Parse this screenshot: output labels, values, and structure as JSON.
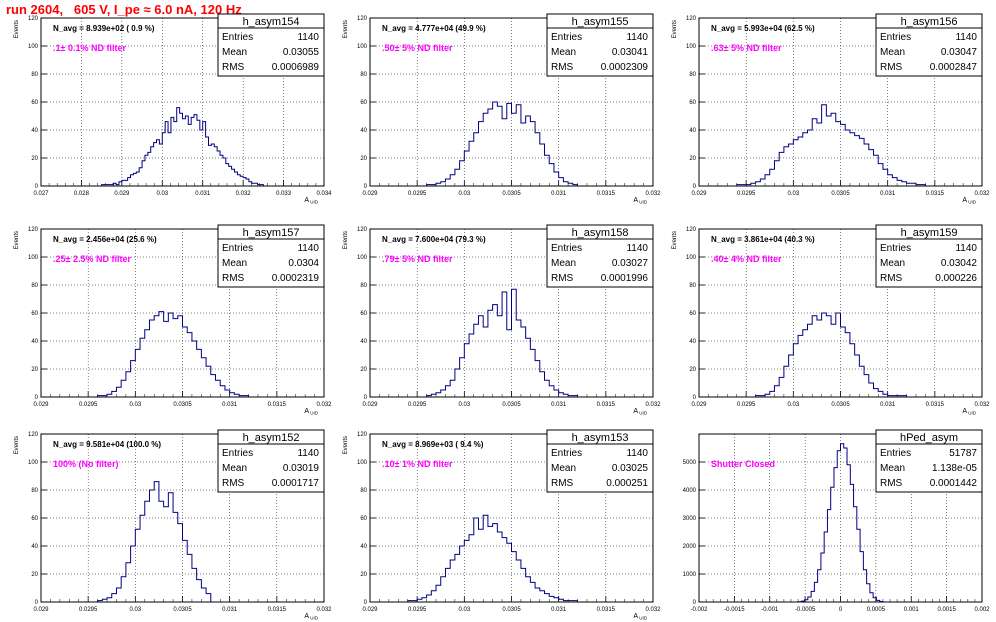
{
  "page": {
    "title": "run 2604,   605 V, I_pe ≈ 6.0 nA, 120 Hz"
  },
  "colors": {
    "hist_line": "#000080",
    "filter_label": "#ff00ff",
    "title": "#ff0000",
    "axis": "#000000",
    "grid": "#000000"
  },
  "chart_data": [
    {
      "type": "histogram",
      "name": "h_asym154",
      "stats": {
        "entries_label": "Entries",
        "entries": "1140",
        "mean_label": "Mean",
        "mean": "0.03055",
        "rms_label": "RMS",
        "rms": "0.0006989"
      },
      "navg": "N_avg = 8.939e+02 ( 0.9 %)",
      "filter": ".1± 0.1% ND filter",
      "ylabel": "Events",
      "xlabel": "A_UID",
      "xlim": [
        0.027,
        0.034
      ],
      "ylim": [
        0,
        120
      ],
      "xticks": [
        0.027,
        0.028,
        0.029,
        0.03,
        0.031,
        0.032,
        0.033,
        0.034
      ],
      "xtick_labels": [
        "0.027",
        "0.028",
        "0.029",
        "0.03",
        "0.031",
        "0.032",
        "0.033",
        "0.034"
      ],
      "yticks": [
        0,
        20,
        40,
        60,
        80,
        100,
        120
      ],
      "ytick_labels": [
        "0",
        "20",
        "40",
        "60",
        "80",
        "100",
        "120"
      ],
      "bin_edges": [
        0.0285,
        0.0325
      ],
      "counts": [
        1,
        1,
        1,
        1,
        2,
        1,
        3,
        4,
        4,
        6,
        8,
        9,
        10,
        13,
        18,
        22,
        24,
        28,
        31,
        33,
        30,
        38,
        46,
        38,
        49,
        46,
        56,
        52,
        48,
        50,
        44,
        49,
        51,
        47,
        40,
        46,
        35,
        29,
        30,
        28,
        25,
        22,
        20,
        16,
        14,
        12,
        10,
        8,
        7,
        6,
        5,
        3,
        2,
        2,
        1,
        1
      ]
    },
    {
      "type": "histogram",
      "name": "h_asym155",
      "stats": {
        "entries_label": "Entries",
        "entries": "1140",
        "mean_label": "Mean",
        "mean": "0.03041",
        "rms_label": "RMS",
        "rms": "0.0002309"
      },
      "navg": "N_avg = 4.777e+04 (49.9 %)",
      "filter": ".50± 5% ND filter",
      "ylabel": "Events",
      "xlabel": "A_UID",
      "xlim": [
        0.029,
        0.032
      ],
      "ylim": [
        0,
        120
      ],
      "xticks": [
        0.029,
        0.0295,
        0.03,
        0.0305,
        0.031,
        0.0315,
        0.032
      ],
      "xtick_labels": [
        "0.029",
        "0.0295",
        "0.03",
        "0.0305",
        "0.031",
        "0.0315",
        "0.032"
      ],
      "yticks": [
        0,
        20,
        40,
        60,
        80,
        100,
        120
      ],
      "ytick_labels": [
        "0",
        "20",
        "40",
        "60",
        "80",
        "100",
        "120"
      ],
      "bin_edges": [
        0.0296,
        0.0312
      ],
      "counts": [
        1,
        1,
        2,
        3,
        5,
        8,
        12,
        18,
        25,
        32,
        38,
        46,
        52,
        55,
        60,
        57,
        48,
        59,
        52,
        58,
        45,
        50,
        46,
        38,
        30,
        22,
        16,
        10,
        6,
        3,
        2,
        1
      ]
    },
    {
      "type": "histogram",
      "name": "h_asym156",
      "stats": {
        "entries_label": "Entries",
        "entries": "1140",
        "mean_label": "Mean",
        "mean": "0.03047",
        "rms_label": "RMS",
        "rms": "0.0002847"
      },
      "navg": "N_avg = 5.993e+04 (62.5 %)",
      "filter": ".63± 5% ND filter",
      "ylabel": "Events",
      "xlabel": "A_UID",
      "xlim": [
        0.029,
        0.032
      ],
      "ylim": [
        0,
        120
      ],
      "xticks": [
        0.029,
        0.0295,
        0.03,
        0.0305,
        0.031,
        0.0315,
        0.032
      ],
      "xtick_labels": [
        "0.029",
        "0.0295",
        "0.03",
        "0.0305",
        "0.031",
        "0.0315",
        "0.032"
      ],
      "yticks": [
        0,
        20,
        40,
        60,
        80,
        100,
        120
      ],
      "ytick_labels": [
        "0",
        "20",
        "40",
        "60",
        "80",
        "100",
        "120"
      ],
      "bin_edges": [
        0.0294,
        0.0314
      ],
      "counts": [
        1,
        1,
        1,
        2,
        3,
        5,
        8,
        12,
        18,
        24,
        28,
        30,
        33,
        35,
        38,
        40,
        48,
        45,
        58,
        50,
        52,
        46,
        44,
        40,
        38,
        36,
        34,
        30,
        26,
        22,
        16,
        12,
        8,
        6,
        4,
        3,
        2,
        2,
        1,
        1
      ]
    },
    {
      "type": "histogram",
      "name": "h_asym157",
      "stats": {
        "entries_label": "Entries",
        "entries": "1140",
        "mean_label": "Mean",
        "mean": "0.0304",
        "rms_label": "RMS",
        "rms": "0.0002319"
      },
      "navg": "N_avg = 2.456e+04 (25.6 %)",
      "filter": ".25± 2.5% ND filter",
      "ylabel": "Events",
      "xlabel": "A_UID",
      "xlim": [
        0.029,
        0.032
      ],
      "ylim": [
        0,
        120
      ],
      "xticks": [
        0.029,
        0.0295,
        0.03,
        0.0305,
        0.031,
        0.0315,
        0.032
      ],
      "xtick_labels": [
        "0.029",
        "0.0295",
        "0.03",
        "0.0305",
        "0.031",
        "0.0315",
        "0.032"
      ],
      "yticks": [
        0,
        20,
        40,
        60,
        80,
        100,
        120
      ],
      "ytick_labels": [
        "0",
        "20",
        "40",
        "60",
        "80",
        "100",
        "120"
      ],
      "bin_edges": [
        0.0296,
        0.0312
      ],
      "counts": [
        1,
        1,
        2,
        4,
        7,
        12,
        18,
        26,
        34,
        42,
        48,
        55,
        58,
        61,
        54,
        60,
        56,
        58,
        50,
        46,
        40,
        34,
        28,
        22,
        16,
        12,
        8,
        5,
        3,
        2,
        1,
        1
      ]
    },
    {
      "type": "histogram",
      "name": "h_asym158",
      "stats": {
        "entries_label": "Entries",
        "entries": "1140",
        "mean_label": "Mean",
        "mean": "0.03027",
        "rms_label": "RMS",
        "rms": "0.0001996"
      },
      "navg": "N_avg = 7.600e+04 (79.3 %)",
      "filter": ".79± 5% ND filter",
      "ylabel": "Events",
      "xlabel": "A_UID",
      "xlim": [
        0.029,
        0.032
      ],
      "ylim": [
        0,
        120
      ],
      "xticks": [
        0.029,
        0.0295,
        0.03,
        0.0305,
        0.031,
        0.0315,
        0.032
      ],
      "xtick_labels": [
        "0.029",
        "0.0295",
        "0.03",
        "0.0305",
        "0.031",
        "0.0315",
        "0.032"
      ],
      "yticks": [
        0,
        20,
        40,
        60,
        80,
        100,
        120
      ],
      "ytick_labels": [
        "0",
        "20",
        "40",
        "60",
        "80",
        "100",
        "120"
      ],
      "bin_edges": [
        0.0296,
        0.0312
      ],
      "counts": [
        1,
        2,
        3,
        5,
        8,
        12,
        20,
        28,
        38,
        45,
        52,
        58,
        50,
        62,
        66,
        58,
        75,
        48,
        77,
        55,
        50,
        42,
        34,
        26,
        18,
        12,
        8,
        5,
        3,
        2,
        1,
        1
      ]
    },
    {
      "type": "histogram",
      "name": "h_asym159",
      "stats": {
        "entries_label": "Entries",
        "entries": "1140",
        "mean_label": "Mean",
        "mean": "0.03042",
        "rms_label": "RMS",
        "rms": "0.000226"
      },
      "navg": "N_avg = 3.861e+04 (40.3 %)",
      "filter": ".40± 4% ND filter",
      "ylabel": "Events",
      "xlabel": "A_UID",
      "xlim": [
        0.029,
        0.032
      ],
      "ylim": [
        0,
        120
      ],
      "xticks": [
        0.029,
        0.0295,
        0.03,
        0.0305,
        0.031,
        0.0315,
        0.032
      ],
      "xtick_labels": [
        "0.029",
        "0.0295",
        "0.03",
        "0.0305",
        "0.031",
        "0.0315",
        "0.032"
      ],
      "yticks": [
        0,
        20,
        40,
        60,
        80,
        100,
        120
      ],
      "ytick_labels": [
        "0",
        "20",
        "40",
        "60",
        "80",
        "100",
        "120"
      ],
      "bin_edges": [
        0.0296,
        0.0312
      ],
      "counts": [
        1,
        1,
        2,
        4,
        8,
        14,
        22,
        30,
        38,
        44,
        48,
        52,
        58,
        55,
        60,
        58,
        52,
        60,
        50,
        46,
        38,
        30,
        22,
        16,
        10,
        6,
        4,
        2,
        1,
        1,
        1,
        1
      ]
    },
    {
      "type": "histogram",
      "name": "h_asym152",
      "stats": {
        "entries_label": "Entries",
        "entries": "1140",
        "mean_label": "Mean",
        "mean": "0.03019",
        "rms_label": "RMS",
        "rms": "0.0001717"
      },
      "navg": "N_avg = 9.581e+04 (100.0 %)",
      "filter": "100% (No filter)",
      "ylabel": "Events",
      "xlabel": "A_UID",
      "xlim": [
        0.029,
        0.032
      ],
      "ylim": [
        0,
        120
      ],
      "xticks": [
        0.029,
        0.0295,
        0.03,
        0.0305,
        0.031,
        0.0315,
        0.032
      ],
      "xtick_labels": [
        "0.029",
        "0.0295",
        "0.03",
        "0.0305",
        "0.031",
        "0.0315",
        "0.032"
      ],
      "yticks": [
        0,
        20,
        40,
        60,
        80,
        100,
        120
      ],
      "ytick_labels": [
        "0",
        "20",
        "40",
        "60",
        "80",
        "100",
        "120"
      ],
      "bin_edges": [
        0.0296,
        0.0308
      ],
      "counts": [
        1,
        2,
        3,
        6,
        10,
        18,
        28,
        40,
        52,
        62,
        72,
        80,
        86,
        72,
        68,
        78,
        64,
        56,
        44,
        34,
        24,
        16,
        10,
        6
      ]
    },
    {
      "type": "histogram",
      "name": "h_asym153",
      "stats": {
        "entries_label": "Entries",
        "entries": "1140",
        "mean_label": "Mean",
        "mean": "0.03025",
        "rms_label": "RMS",
        "rms": "0.000251"
      },
      "navg": "N_avg = 8.969e+03 ( 9.4 %)",
      "filter": ".10± 1% ND filter",
      "ylabel": "Events",
      "xlabel": "A_UID",
      "xlim": [
        0.029,
        0.032
      ],
      "ylim": [
        0,
        120
      ],
      "xticks": [
        0.029,
        0.0295,
        0.03,
        0.0305,
        0.031,
        0.0315,
        0.032
      ],
      "xtick_labels": [
        "0.029",
        "0.0295",
        "0.03",
        "0.0305",
        "0.031",
        "0.0315",
        "0.032"
      ],
      "yticks": [
        0,
        20,
        40,
        60,
        80,
        100,
        120
      ],
      "ytick_labels": [
        "0",
        "20",
        "40",
        "60",
        "80",
        "100",
        "120"
      ],
      "bin_edges": [
        0.0294,
        0.0312
      ],
      "counts": [
        1,
        1,
        2,
        3,
        5,
        8,
        12,
        18,
        24,
        30,
        34,
        40,
        44,
        48,
        60,
        52,
        62,
        54,
        56,
        50,
        46,
        42,
        36,
        30,
        24,
        18,
        14,
        10,
        8,
        6,
        4,
        3,
        2,
        1,
        1,
        1
      ]
    },
    {
      "type": "histogram",
      "name": "hPed_asym",
      "stats": {
        "entries_label": "Entries",
        "entries": "51787",
        "mean_label": "Mean",
        "mean": "1.138e-05",
        "rms_label": "RMS",
        "rms": "0.0001442"
      },
      "navg": "",
      "filter": "Shutter Closed",
      "ylabel": "",
      "xlabel": "",
      "xlim": [
        -0.002,
        0.002
      ],
      "ylim": [
        0,
        6000
      ],
      "xticks": [
        -0.002,
        -0.0015,
        -0.001,
        -0.0005,
        0,
        0.0005,
        0.001,
        0.0015,
        0.002
      ],
      "xtick_labels": [
        "-0.002",
        "-0.0015",
        "-0.001",
        "-0.0005",
        "0",
        "0.0005",
        "0.001",
        "0.0015",
        "0.002"
      ],
      "yticks": [
        0,
        1000,
        2000,
        3000,
        4000,
        5000
      ],
      "ytick_labels": [
        "0",
        "1000",
        "2000",
        "3000",
        "4000",
        "5000"
      ],
      "bin_edges": [
        -0.0006,
        0.0006
      ],
      "counts": [
        10,
        30,
        80,
        180,
        380,
        700,
        1150,
        1750,
        2500,
        3300,
        4100,
        4800,
        5400,
        5650,
        5500,
        4900,
        4200,
        3400,
        2600,
        1800,
        1150,
        650,
        330,
        150,
        60,
        20
      ]
    }
  ]
}
